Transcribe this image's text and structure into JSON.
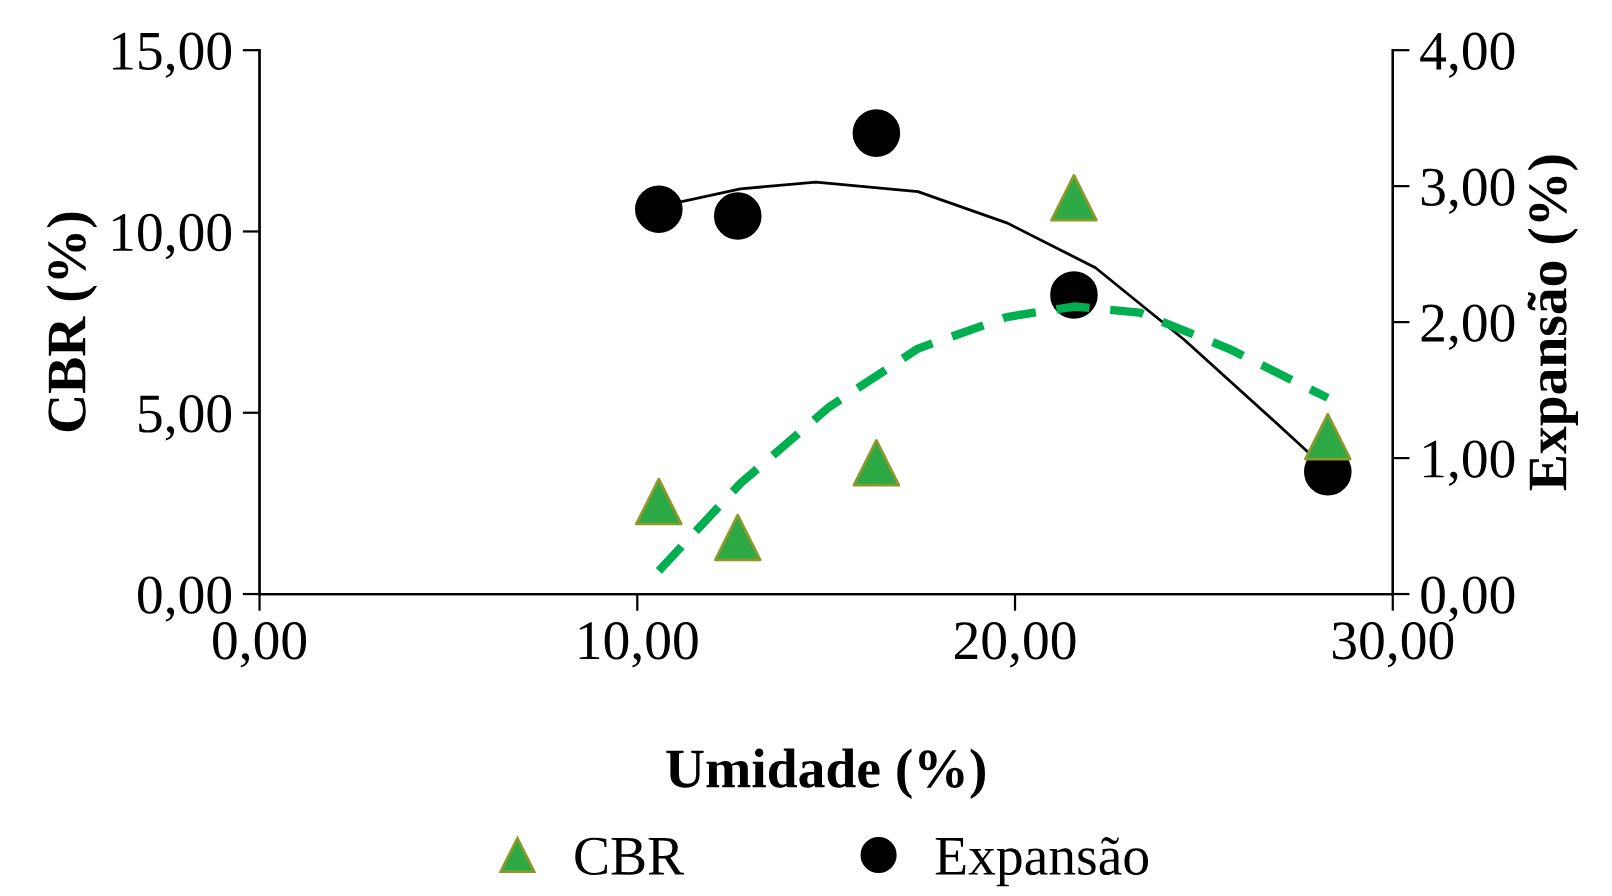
{
  "chart_data": {
    "type": "scatter",
    "xlabel": "Umidade (%)",
    "ylabel": "CBR (%)",
    "y2label": "Expansão (%)",
    "xlim": [
      0,
      30
    ],
    "xticks": [
      {
        "value": 0,
        "label": "0,00"
      },
      {
        "value": 10,
        "label": "10,00"
      },
      {
        "value": 20,
        "label": "20,00"
      },
      {
        "value": 30,
        "label": "30,00"
      }
    ],
    "ylim": [
      0,
      15
    ],
    "yticks": [
      {
        "value": 0,
        "label": "0,00"
      },
      {
        "value": 5,
        "label": "5,00"
      },
      {
        "value": 10,
        "label": "10,00"
      },
      {
        "value": 15,
        "label": "15,00"
      }
    ],
    "y2lim": [
      0,
      4
    ],
    "y2ticks": [
      {
        "value": 0,
        "label": "0,00"
      },
      {
        "value": 1,
        "label": "1,00"
      },
      {
        "value": 2,
        "label": "2,00"
      },
      {
        "value": 3,
        "label": "3,00"
      },
      {
        "value": 4,
        "label": "4,00"
      }
    ],
    "legend": "bottom",
    "grid": false,
    "series": [
      {
        "name": "CBR",
        "marker": "triangle",
        "color": "#2ca844",
        "x": [
          10.57,
          12.66,
          16.33,
          21.56,
          28.28
        ],
        "values": [
          2.55,
          1.56,
          3.62,
          10.93,
          4.34
        ]
      },
      {
        "name": "Expansão",
        "marker": "circle",
        "axis": "y2",
        "color": "#000000",
        "x": [
          10.57,
          12.66,
          16.33,
          21.56,
          28.28
        ],
        "values": [
          2.83,
          2.78,
          3.39,
          2.2,
          0.9
        ]
      },
      {
        "type": "line",
        "line_style": "dashed",
        "color": "#00b050",
        "x": [
          10.57,
          12.73,
          15.08,
          17.43,
          19.78,
          21.56,
          23.3,
          25.65,
          28.28
        ],
        "values": [
          0.64,
          3.05,
          5.16,
          6.77,
          7.64,
          7.93,
          7.76,
          6.77,
          5.41
        ]
      },
      {
        "type": "line",
        "line_style": "solid",
        "axis": "y2",
        "color": "#000000",
        "x": [
          10.57,
          12.73,
          14.73,
          17.43,
          19.78,
          22.13,
          24.48,
          26.83,
          28.28
        ],
        "values": [
          2.85,
          2.98,
          3.03,
          2.96,
          2.73,
          2.4,
          1.87,
          1.28,
          0.91
        ]
      }
    ]
  }
}
